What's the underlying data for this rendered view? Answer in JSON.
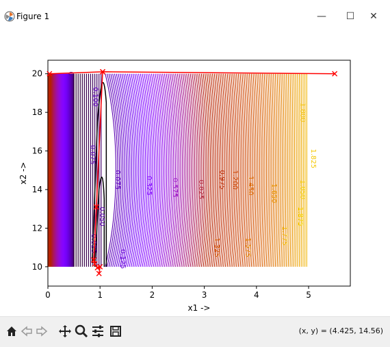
{
  "window": {
    "title": "Figure 1",
    "minimize_glyph": "—",
    "maximize_glyph": "☐",
    "close_glyph": "✕"
  },
  "toolbar": {
    "buttons": [
      "home-icon",
      "back-icon",
      "forward-icon",
      "pan-icon",
      "zoom-icon",
      "configure-subplots-icon",
      "save-icon"
    ],
    "coordinates": "(x, y) = (4.425, 14.56)"
  },
  "chart_data": {
    "type": "contour",
    "xlabel": "x1 ->",
    "ylabel": "x2 ->",
    "xlim": [
      0,
      5.8
    ],
    "ylim": [
      9,
      20.7
    ],
    "x_ticks": [
      "0",
      "1",
      "2",
      "3",
      "4",
      "5"
    ],
    "y_ticks": [
      "10",
      "12",
      "14",
      "16",
      "18",
      "20"
    ],
    "colormap": "gnuplot (black→purple→red→orange→yellow)",
    "contour_labels": [
      "0.100",
      "0.075",
      "0.050",
      "0.025",
      "0",
      "0.125",
      "0.325",
      "0.575",
      "0.825",
      "0.975",
      "1.200",
      "1.325",
      "1.450",
      "1.575",
      "1.650",
      "1.775",
      "1.800",
      "1.825",
      "1.850",
      "1.875"
    ],
    "path": {
      "color": "#ff0000",
      "points": [
        [
          0.03,
          20.0
        ],
        [
          1.05,
          20.1
        ],
        [
          5.5,
          20.0
        ],
        [
          1.05,
          20.1
        ],
        [
          0.93,
          13.1
        ],
        [
          0.88,
          10.35
        ],
        [
          0.9,
          10.15
        ],
        [
          0.95,
          9.95
        ],
        [
          1.0,
          10.0
        ],
        [
          0.98,
          9.65
        ]
      ]
    },
    "grid": false
  },
  "colors": {
    "path_red": "#ff0000",
    "toolbar_bg": "#f0f0f0"
  }
}
